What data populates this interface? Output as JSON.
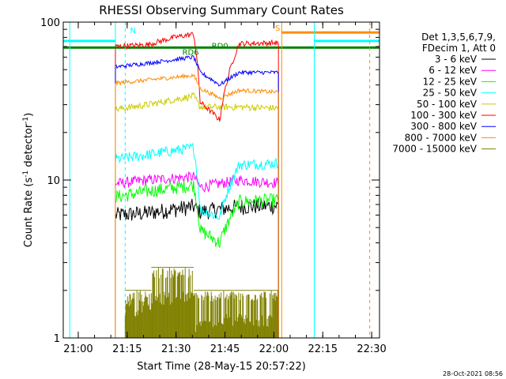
{
  "chart_data": {
    "type": "line",
    "title": "RHESSI Observing Summary Count Rates",
    "xlabel": "Start Time (28-May-15 20:57:22)",
    "ylabel_main": "Count Rate (s",
    "ylabel_sup": "-1",
    "ylabel_mid": " detector",
    "ylabel_end": ")",
    "yscale": "log",
    "xlim": [
      -2,
      95
    ],
    "ylim": [
      1,
      100
    ],
    "x_unit": "minutes after 20:57:22",
    "x_ticks": [
      {
        "x": 2.6,
        "label": "21:00"
      },
      {
        "x": 17.6,
        "label": "21:15"
      },
      {
        "x": 32.6,
        "label": "21:30"
      },
      {
        "x": 47.6,
        "label": "21:45"
      },
      {
        "x": 62.6,
        "label": "22:00"
      },
      {
        "x": 77.6,
        "label": "22:15"
      },
      {
        "x": 92.6,
        "label": "22:30"
      }
    ],
    "y_ticks": [
      {
        "y": 1,
        "label": "1"
      },
      {
        "y": 10,
        "label": "10"
      },
      {
        "y": 100,
        "label": "100"
      }
    ],
    "legend_header": [
      "Det 1,3,5,6,7,9,",
      "FDecim 1, Att 0"
    ],
    "legend_placement": "right",
    "timestamp": "28-Oct-2021 08:56",
    "annotations": [
      {
        "text": "N",
        "x": 18.5,
        "y": 85,
        "color": "#00ffff"
      },
      {
        "text": "RD6",
        "x": 34.5,
        "y": 62,
        "color": "#008000"
      },
      {
        "text": "RD0",
        "x": 43.5,
        "y": 68,
        "color": "#008000"
      },
      {
        "text": "S",
        "x": 63,
        "y": 88,
        "color": "#ff8c00"
      }
    ],
    "flags": [
      {
        "name": "saa-flag",
        "color": "#00ffff",
        "segments": [
          [
            -2,
            14,
            76
          ],
          [
            75,
            95,
            76
          ]
        ]
      },
      {
        "name": "s-flag",
        "color": "#ff8c00",
        "segments": [
          [
            65,
            95,
            86
          ]
        ]
      },
      {
        "name": "decimation-flag",
        "color": "#008000",
        "segments": [
          [
            -2,
            95,
            69
          ]
        ]
      }
    ],
    "vlines": [
      {
        "x": 0,
        "color": "#00ffff",
        "dashed": false
      },
      {
        "x": 14,
        "color": "#00ffff",
        "dashed": false
      },
      {
        "x": 17,
        "color": "#00ffff",
        "dashed": true
      },
      {
        "x": 65,
        "color": "#ff8c00",
        "dashed": false
      },
      {
        "x": 75,
        "color": "#00ffff",
        "dashed": false
      },
      {
        "x": 92,
        "color": "#ff8c00",
        "dashed": true
      }
    ],
    "series": [
      {
        "name": "3 - 6 keV",
        "color": "#000000",
        "noise": 0.12,
        "segments": [
          {
            "x": [
              14,
              24,
              38,
              40,
              52,
              64
            ],
            "y": [
              6.0,
              6.2,
              6.8,
              6.3,
              6.8,
              6.9
            ]
          }
        ]
      },
      {
        "name": "6 - 12 keV",
        "color": "#ff00ff",
        "noise": 0.08,
        "segments": [
          {
            "x": [
              14,
              24,
              38,
              40,
              52,
              64
            ],
            "y": [
              9.5,
              10.0,
              10.5,
              9.0,
              10.0,
              9.6
            ]
          }
        ]
      },
      {
        "name": "12 - 25 keV",
        "color": "#00ff00",
        "noise": 0.1,
        "segments": [
          {
            "x": [
              14,
              24,
              38,
              40,
              46,
              52,
              64
            ],
            "y": [
              7.8,
              8.5,
              9.3,
              4.8,
              4.0,
              7.3,
              7.5
            ]
          }
        ]
      },
      {
        "name": "25 - 50 keV",
        "color": "#00ffff",
        "noise": 0.08,
        "segments": [
          {
            "x": [
              14,
              24,
              38,
              40,
              46,
              52,
              64
            ],
            "y": [
              13.5,
              14.5,
              16.0,
              6.5,
              5.8,
              12.5,
              12.8
            ]
          }
        ]
      },
      {
        "name": "50 - 100 keV",
        "color": "#cccc00",
        "noise": 0.05,
        "segments": [
          {
            "x": [
              14,
              24,
              38,
              40,
              52,
              64
            ],
            "y": [
              28.0,
              30.0,
              34.0,
              29.0,
              29.0,
              28.5
            ]
          }
        ]
      },
      {
        "name": "100 - 300 keV",
        "color": "#ff0000",
        "noise": 0.04,
        "segments": [
          {
            "x": [
              14,
              24,
              32,
              38,
              40,
              46,
              52,
              64
            ],
            "y": [
              70.0,
              72.0,
              80.0,
              84.0,
              31.0,
              24.0,
              73.0,
              74.0
            ]
          }
        ]
      },
      {
        "name": "300 - 800 keV",
        "color": "#0000ff",
        "noise": 0.03,
        "segments": [
          {
            "x": [
              14,
              24,
              38,
              40,
              46,
              52,
              64
            ],
            "y": [
              52.0,
              55.0,
              60.0,
              48.0,
              40.0,
              48.0,
              48.0
            ]
          }
        ]
      },
      {
        "name": "800 - 7000 keV",
        "color": "#ff8c00",
        "noise": 0.03,
        "segments": [
          {
            "x": [
              14,
              24,
              38,
              40,
              46,
              52,
              64
            ],
            "y": [
              41.0,
              43.0,
              46.0,
              38.0,
              33.0,
              37.0,
              36.0
            ]
          }
        ]
      },
      {
        "name": "7000 - 15000 keV",
        "color": "#808000",
        "noise": 0.0,
        "segments": [
          {
            "x": [
              17,
              64
            ],
            "y": [
              1.0,
              1.0
            ]
          }
        ],
        "bursts": [
          [
            17,
            25,
            1.5,
            2.0
          ],
          [
            25,
            38,
            1.8,
            2.8
          ],
          [
            38,
            46,
            1.2,
            2.0
          ],
          [
            46,
            64,
            1.3,
            2.0
          ]
        ]
      }
    ]
  }
}
